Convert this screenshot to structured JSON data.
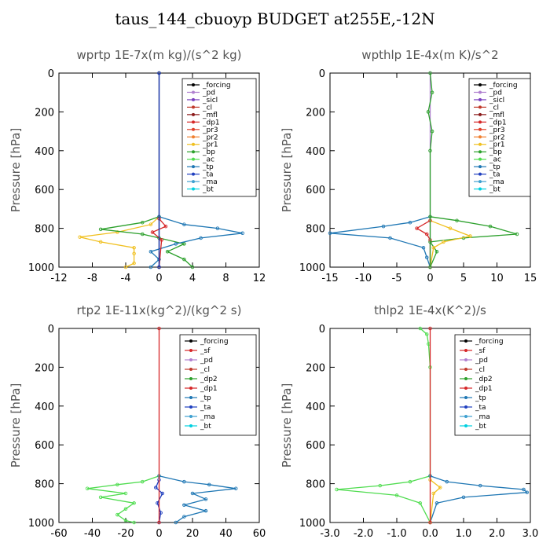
{
  "page_title": "taus_144_cbuoyp  BUDGET at255E,-12N",
  "chart_data": [
    {
      "type": "line",
      "title": "wprtp  1E-7x(m kg)/(s^2 kg)",
      "ylabel": "Pressure [hPa]",
      "xlim": [
        -12,
        12
      ],
      "ylim": [
        1000,
        0
      ],
      "xticks": [
        -12,
        -8,
        -4,
        0,
        4,
        8,
        12
      ],
      "xtick_labels": [
        "-12",
        "-8",
        "-4",
        "0",
        "4",
        "8",
        "12"
      ],
      "yticks": [
        0,
        200,
        400,
        600,
        800,
        1000
      ],
      "legend": [
        "_forcing",
        "_pd",
        "_sicl",
        "_cl",
        "_mfl",
        "_dp1",
        "_pr3",
        "_pr2",
        "_pr1",
        "_bp",
        "_ac",
        "_tp",
        "_ta",
        "_ma",
        "_bt"
      ],
      "series": [
        {
          "name": "_pr1",
          "color": "#f0c020",
          "points": [
            [
              0,
              740
            ],
            [
              -1,
              780
            ],
            [
              -5,
              820
            ],
            [
              -9.5,
              845
            ],
            [
              -7,
              870
            ],
            [
              -3,
              900
            ],
            [
              -3,
              930
            ],
            [
              -3,
              980
            ],
            [
              -4,
              1000
            ]
          ]
        },
        {
          "name": "_ac",
          "color": "#2ca02c",
          "points": [
            [
              0,
              740
            ],
            [
              -2,
              770
            ],
            [
              -7,
              805
            ],
            [
              -2,
              830
            ],
            [
              0,
              850
            ],
            [
              3,
              880
            ],
            [
              1,
              920
            ],
            [
              3,
              960
            ],
            [
              4,
              1000
            ]
          ]
        },
        {
          "name": "_tp",
          "color": "#1f77b4",
          "points": [
            [
              0,
              740
            ],
            [
              3,
              780
            ],
            [
              7,
              800
            ],
            [
              10,
              825
            ],
            [
              5,
              850
            ],
            [
              2,
              880
            ],
            [
              -1,
              920
            ],
            [
              0,
              960
            ],
            [
              -1,
              1000
            ]
          ]
        },
        {
          "name": "_dp1",
          "color": "#d62728",
          "points": [
            [
              0,
              750
            ],
            [
              0.8,
              790
            ],
            [
              -0.8,
              820
            ],
            [
              0.3,
              860
            ],
            [
              0,
              1000
            ]
          ]
        },
        {
          "name": "_forcing",
          "color": "#000000",
          "points": [
            [
              0,
              0
            ],
            [
              0,
              1000
            ]
          ]
        },
        {
          "name": "_ta",
          "color": "#1f3fbf",
          "points": [
            [
              0,
              0
            ],
            [
              0,
              1000
            ]
          ]
        }
      ]
    },
    {
      "type": "line",
      "title": "wpthlp  1E-4x(m K)/s^2",
      "ylabel": "Pressure [hPa]",
      "xlim": [
        -15,
        15
      ],
      "ylim": [
        1000,
        0
      ],
      "xticks": [
        -15,
        -10,
        -5,
        0,
        5,
        10,
        15
      ],
      "xtick_labels": [
        "-15",
        "-10",
        "-5",
        "0",
        "5",
        "10",
        "15"
      ],
      "yticks": [
        0,
        200,
        400,
        600,
        800,
        1000
      ],
      "legend": [
        "_forcing",
        "_pd",
        "_sicl",
        "_cl",
        "_mfl",
        "_dp1",
        "_pr3",
        "_pr2",
        "_pr1",
        "_bp",
        "_ac",
        "_tp",
        "_ta",
        "_ma",
        "_bt"
      ],
      "series": [
        {
          "name": "_tp",
          "color": "#1f77b4",
          "points": [
            [
              0,
              740
            ],
            [
              -3,
              770
            ],
            [
              -7,
              790
            ],
            [
              -15,
              825
            ],
            [
              -6,
              850
            ],
            [
              -1,
              900
            ],
            [
              -0.5,
              950
            ],
            [
              0,
              1000
            ]
          ]
        },
        {
          "name": "_ac",
          "color": "#2ca02c",
          "points": [
            [
              0,
              740
            ],
            [
              4,
              760
            ],
            [
              9,
              790
            ],
            [
              13,
              830
            ],
            [
              5,
              850
            ],
            [
              0,
              870
            ],
            [
              1,
              920
            ],
            [
              0,
              1000
            ]
          ]
        },
        {
          "name": "_pr1",
          "color": "#f0c020",
          "points": [
            [
              0,
              760
            ],
            [
              3,
              800
            ],
            [
              6,
              840
            ],
            [
              2,
              870
            ],
            [
              0.5,
              900
            ],
            [
              0,
              1000
            ]
          ]
        },
        {
          "name": "_dp1",
          "color": "#d62728",
          "points": [
            [
              0,
              760
            ],
            [
              -2,
              800
            ],
            [
              -0.5,
              830
            ],
            [
              0,
              860
            ],
            [
              0,
              1000
            ]
          ]
        },
        {
          "name": "_forcing",
          "color": "#b080d0",
          "points": [
            [
              0,
              0
            ],
            [
              0,
              1000
            ]
          ]
        },
        {
          "name": "_bp",
          "color": "#2ca02c",
          "points": [
            [
              0,
              0
            ],
            [
              0.3,
              100
            ],
            [
              -0.3,
              200
            ],
            [
              0.3,
              300
            ],
            [
              0,
              400
            ],
            [
              0,
              1000
            ]
          ]
        }
      ]
    },
    {
      "type": "line",
      "title": "rtp2  1E-11x(kg^2)/(kg^2 s)",
      "ylabel": "Pressure [hPa]",
      "xlim": [
        -60,
        60
      ],
      "ylim": [
        1000,
        0
      ],
      "xticks": [
        -60,
        -40,
        -20,
        0,
        20,
        40,
        60
      ],
      "xtick_labels": [
        "-60",
        "-40",
        "-20",
        "0",
        "20",
        "40",
        "60"
      ],
      "yticks": [
        0,
        200,
        400,
        600,
        800,
        1000
      ],
      "legend": [
        "_forcing",
        "_sf",
        "_pd",
        "_cl",
        "_dp2",
        "_dp1",
        "_tp",
        "_ta",
        "_ma",
        "_bt"
      ],
      "series": [
        {
          "name": "_dp1",
          "color": "#4fdc4f",
          "points": [
            [
              0,
              760
            ],
            [
              -10,
              790
            ],
            [
              -25,
              805
            ],
            [
              -43,
              825
            ],
            [
              -20,
              850
            ],
            [
              -35,
              870
            ],
            [
              -15,
              900
            ],
            [
              -20,
              930
            ],
            [
              -25,
              960
            ],
            [
              -20,
              990
            ],
            [
              -15,
              1000
            ]
          ]
        },
        {
          "name": "_tp",
          "color": "#1f77b4",
          "points": [
            [
              0,
              760
            ],
            [
              15,
              790
            ],
            [
              30,
              805
            ],
            [
              46,
              825
            ],
            [
              20,
              850
            ],
            [
              28,
              880
            ],
            [
              15,
              910
            ],
            [
              28,
              940
            ],
            [
              15,
              970
            ],
            [
              10,
              1000
            ]
          ]
        },
        {
          "name": "_ta",
          "color": "#1f3fbf",
          "points": [
            [
              0,
              780
            ],
            [
              -2,
              820
            ],
            [
              2,
              850
            ],
            [
              -1,
              900
            ],
            [
              1,
              950
            ],
            [
              0,
              1000
            ]
          ]
        },
        {
          "name": "_forcing",
          "color": "#d62728",
          "points": [
            [
              0,
              0
            ],
            [
              0,
              1000
            ]
          ]
        }
      ]
    },
    {
      "type": "line",
      "title": "thlp2  1E-4x(K^2)/s",
      "ylabel": "Pressure [hPa]",
      "xlim": [
        -3,
        3
      ],
      "ylim": [
        1000,
        0
      ],
      "xticks": [
        -3,
        -2,
        -1,
        0,
        1,
        2,
        3
      ],
      "xtick_labels": [
        "-3.0",
        "-2.0",
        "-1.0",
        "0.0",
        "1.0",
        "2.0",
        "3.0"
      ],
      "yticks": [
        0,
        200,
        400,
        600,
        800,
        1000
      ],
      "legend": [
        "_forcing",
        "_sf",
        "_pd",
        "_cl",
        "_dp2",
        "_dp1",
        "_tp",
        "_ta",
        "_ma",
        "_bt"
      ],
      "series": [
        {
          "name": "_dp1",
          "color": "#4fdc4f",
          "points": [
            [
              -0.3,
              0
            ],
            [
              -0.1,
              30
            ],
            [
              -0.05,
              80
            ],
            [
              0,
              200
            ],
            [
              0,
              760
            ],
            [
              -0.6,
              790
            ],
            [
              -1.5,
              810
            ],
            [
              -2.8,
              830
            ],
            [
              -1,
              860
            ],
            [
              -0.3,
              900
            ],
            [
              0,
              1000
            ]
          ]
        },
        {
          "name": "_tp",
          "color": "#1f77b4",
          "points": [
            [
              0,
              760
            ],
            [
              0.5,
              790
            ],
            [
              1.5,
              810
            ],
            [
              2.8,
              830
            ],
            [
              2.9,
              845
            ],
            [
              1,
              870
            ],
            [
              0.2,
              900
            ],
            [
              0,
              1000
            ]
          ]
        },
        {
          "name": "_pr1",
          "color": "#f0c020",
          "points": [
            [
              0,
              780
            ],
            [
              0.3,
              820
            ],
            [
              0.1,
              850
            ],
            [
              0,
              1000
            ]
          ]
        },
        {
          "name": "_forcing",
          "color": "#d62728",
          "points": [
            [
              0,
              0
            ],
            [
              0,
              1000
            ]
          ]
        }
      ]
    }
  ]
}
